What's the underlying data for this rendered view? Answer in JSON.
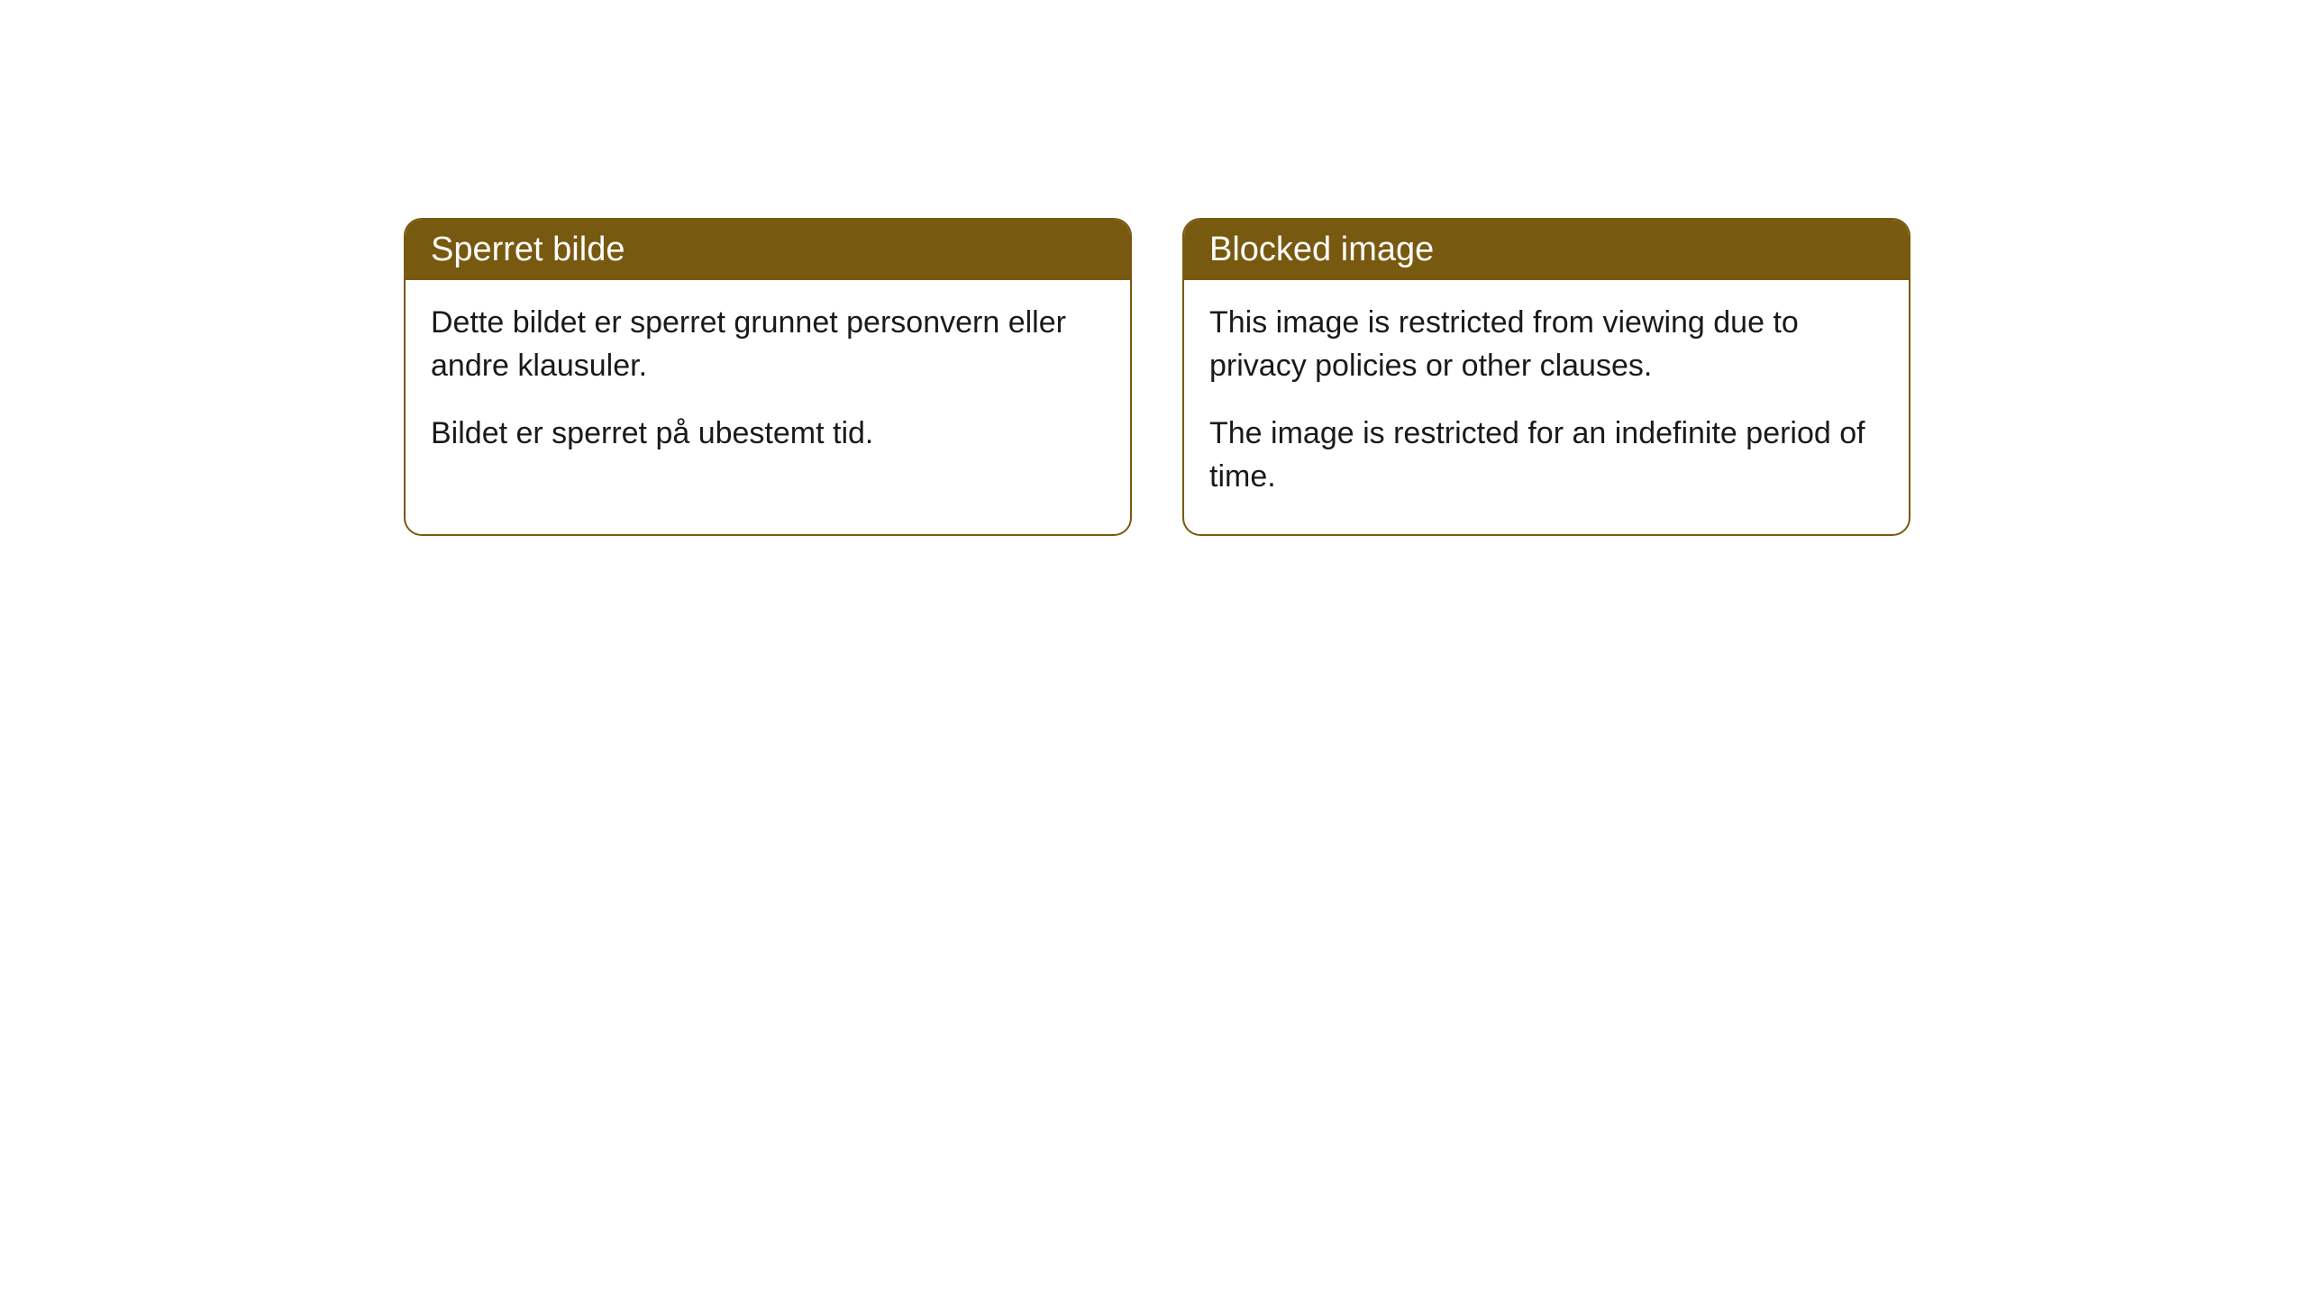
{
  "cards": [
    {
      "title": "Sperret bilde",
      "paragraph1": "Dette bildet er sperret grunnet personvern eller andre klausuler.",
      "paragraph2": "Bildet er sperret på ubestemt tid."
    },
    {
      "title": "Blocked image",
      "paragraph1": "This image is restricted from viewing due to privacy policies or other clauses.",
      "paragraph2": "The image is restricted for an indefinite period of time."
    }
  ],
  "styling": {
    "header_background_color": "#785910",
    "header_text_color": "#ffffff",
    "border_color": "#785910",
    "body_background_color": "#ffffff",
    "body_text_color": "#1a1a1a",
    "border_radius": 20,
    "header_fontsize": 38,
    "body_fontsize": 34
  }
}
